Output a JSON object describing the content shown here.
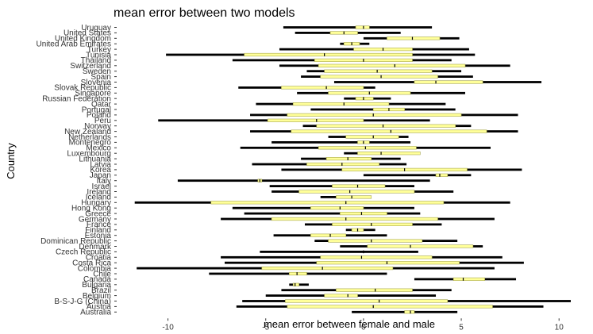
{
  "chart_data": {
    "type": "bar",
    "title": "mean error between two models",
    "xlabel": "mean error between female and male",
    "ylabel": "Country",
    "xlim": [
      -12.5,
      10.6
    ],
    "xticks": [
      -10,
      -5,
      0,
      5,
      10
    ],
    "xtick_labels": [
      "-10",
      "-5",
      "0",
      "5",
      "10"
    ],
    "grid": false,
    "legend": "none",
    "colors": {
      "outer": "#000000",
      "inner": "#ffff99",
      "inner_edge": "#a8a850",
      "center": "#000000"
    },
    "categories": [
      "Australia",
      "Austria",
      "B-S-J-G (China)",
      "Belgium",
      "Brazil",
      "Bulgaria",
      "Canada",
      "Chile",
      "Colombia",
      "Costa Rica",
      "Croatia",
      "Czech Republic",
      "Denmark",
      "Dominican Republic",
      "Estonia",
      "Finland",
      "France",
      "Germany",
      "Greece",
      "Hong Kong",
      "Hungary",
      "Iceland",
      "Ireland",
      "Israel",
      "Italy",
      "Japan",
      "Korea",
      "Latvia",
      "Lithuania",
      "Luxembourg",
      "Mexico",
      "Montenegro",
      "Netherlands",
      "New Zealand",
      "Norway",
      "Peru",
      "Poland",
      "Portugal",
      "Qatar",
      "Russian Federation",
      "Singapore",
      "Slovak Republic",
      "Slovenia",
      "Spain",
      "Sweden",
      "Switzerland",
      "Thailand",
      "Tunisia",
      "Turkey",
      "United Arab Emirates",
      "United Kingdom",
      "United States",
      "Uruguay"
    ],
    "outer": [
      [
        -0.6,
        4.8
      ],
      [
        -6.5,
        9.2
      ],
      [
        -6.2,
        10.6
      ],
      [
        -5.0,
        3.7
      ],
      [
        -4.2,
        4.5
      ],
      [
        -3.8,
        -2.8
      ],
      [
        2.6,
        7.8
      ],
      [
        -7.9,
        1.2
      ],
      [
        -11.6,
        6.7
      ],
      [
        -7.1,
        8.2
      ],
      [
        -7.3,
        7.1
      ],
      [
        -5.3,
        2.8
      ],
      [
        -1.2,
        6.1
      ],
      [
        -2.5,
        4.8
      ],
      [
        -4.6,
        1.2
      ],
      [
        -0.9,
        0.6
      ],
      [
        -3.0,
        4.0
      ],
      [
        -7.3,
        6.7
      ],
      [
        -6.1,
        2.9
      ],
      [
        -6.7,
        2.6
      ],
      [
        -11.7,
        7.5
      ],
      [
        -2.2,
        0.4
      ],
      [
        -4.7,
        4.6
      ],
      [
        -4.8,
        2.6
      ],
      [
        -9.5,
        3.4
      ],
      [
        0.0,
        5.5
      ],
      [
        -4.2,
        8.1
      ],
      [
        -5.7,
        2.2
      ],
      [
        -3.2,
        1.9
      ],
      [
        -1.0,
        1.1
      ],
      [
        -6.3,
        6.5
      ],
      [
        -4.7,
        2.4
      ],
      [
        -1.8,
        2.3
      ],
      [
        -5.8,
        7.9
      ],
      [
        -3.1,
        5.5
      ],
      [
        -10.5,
        3.4
      ],
      [
        -5.8,
        7.9
      ],
      [
        -2.7,
        4.7
      ],
      [
        -5.5,
        4.2
      ],
      [
        -1.0,
        1.4
      ],
      [
        -3.4,
        5.2
      ],
      [
        -6.4,
        0.6
      ],
      [
        -1.5,
        9.1
      ],
      [
        -3.2,
        5.6
      ],
      [
        -2.9,
        5.0
      ],
      [
        -4.3,
        7.5
      ],
      [
        -6.7,
        4.5
      ],
      [
        -10.1,
        5.7
      ],
      [
        -4.3,
        5.4
      ],
      [
        -1.2,
        0.3
      ],
      [
        0.0,
        4.9
      ],
      [
        -3.5,
        1.9
      ],
      [
        -4.1,
        3.5
      ]
    ],
    "inner": [
      [
        2.1,
        2.6
      ],
      [
        -3.9,
        6.6
      ],
      [
        -4.0,
        4.3
      ],
      [
        -2.0,
        -0.3
      ],
      [
        -1.4,
        2.5
      ],
      [
        -3.6,
        -3.3
      ],
      [
        4.6,
        6.2
      ],
      [
        -3.8,
        -2.9
      ],
      [
        -5.2,
        1.5
      ],
      [
        -2.4,
        4.9
      ],
      [
        -2.2,
        3.5
      ],
      [
        0.0,
        0.0
      ],
      [
        0.2,
        5.6
      ],
      [
        -1.8,
        3.0
      ],
      [
        -2.7,
        -0.9
      ],
      [
        -0.6,
        0.0
      ],
      [
        -1.6,
        2.5
      ],
      [
        -4.7,
        3.8
      ],
      [
        -1.2,
        1.2
      ],
      [
        -2.7,
        0.0
      ],
      [
        -7.8,
        4.1
      ],
      [
        -1.4,
        0.4
      ],
      [
        -3.3,
        2.6
      ],
      [
        -1.6,
        1.1
      ],
      [
        -5.4,
        -5.2
      ],
      [
        3.7,
        4.3
      ],
      [
        -1.1,
        5.3
      ],
      [
        -2.9,
        0.8
      ],
      [
        -1.9,
        0.4
      ],
      [
        -0.3,
        2.9
      ],
      [
        -2.3,
        2.7
      ],
      [
        -0.3,
        0.3
      ],
      [
        -0.9,
        1.8
      ],
      [
        -3.7,
        6.3
      ],
      [
        -2.4,
        4.7
      ],
      [
        -4.9,
        0.0
      ],
      [
        -3.9,
        5.0
      ],
      [
        0.5,
        2.1
      ],
      [
        -3.6,
        1.3
      ],
      [
        -0.4,
        0.5
      ],
      [
        -1.8,
        2.4
      ],
      [
        -4.2,
        0.0
      ],
      [
        2.6,
        6.1
      ],
      [
        -2.2,
        3.8
      ],
      [
        -2.0,
        3.5
      ],
      [
        -2.3,
        5.2
      ],
      [
        -2.5,
        2.5
      ],
      [
        -6.1,
        2.5
      ],
      [
        -0.5,
        2.5
      ],
      [
        -1.0,
        -0.2
      ],
      [
        1.2,
        3.9
      ],
      [
        -1.7,
        -0.3
      ],
      [
        -0.4,
        0.3
      ]
    ],
    "center": [
      2.4,
      0.5,
      0.8,
      -0.8,
      0.6,
      -3.5,
      5.1,
      -3.4,
      -2.1,
      1.2,
      -0.1,
      0.0,
      2.4,
      0.4,
      -1.7,
      -0.3,
      0.4,
      -0.9,
      -0.1,
      -1.2,
      -0.9,
      -0.6,
      -0.7,
      -0.3,
      -5.3,
      3.9,
      2.1,
      -1.1,
      -0.8,
      0.9,
      0.1,
      0.0,
      0.5,
      1.4,
      1.0,
      -2.4,
      0.5,
      1.3,
      -1.0,
      0.0,
      0.3,
      -1.9,
      3.7,
      0.9,
      0.7,
      1.6,
      0.0,
      -2.0,
      1.0,
      -0.6,
      2.5,
      -1.0,
      0.0
    ]
  }
}
